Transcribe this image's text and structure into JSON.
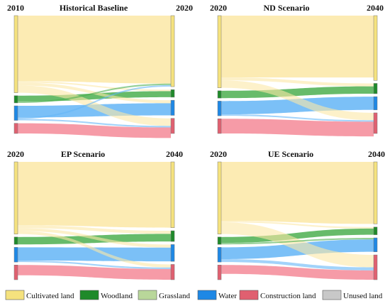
{
  "panels": [
    {
      "title": "Historical Baseline",
      "start_year": "2010",
      "end_year": "2020",
      "left": [
        {
          "class": "cultivated",
          "v": 53
        },
        {
          "class": "gap",
          "v": 2
        },
        {
          "class": "woodland",
          "v": 5
        },
        {
          "class": "gap",
          "v": 2
        },
        {
          "class": "water",
          "v": 10
        },
        {
          "class": "gap",
          "v": 2
        },
        {
          "class": "construction",
          "v": 7
        }
      ],
      "right": [
        {
          "class": "cultivated",
          "v": 47
        },
        {
          "class": "gap",
          "v": 2
        },
        {
          "class": "woodland",
          "v": 5
        },
        {
          "class": "gap",
          "v": 2
        },
        {
          "class": "water",
          "v": 10
        },
        {
          "class": "gap",
          "v": 2
        },
        {
          "class": "construction",
          "v": 10
        }
      ],
      "flows": [
        {
          "from": "cultivated",
          "to": "cultivated",
          "v": 45
        },
        {
          "from": "cultivated",
          "to": "woodland",
          "v": 1
        },
        {
          "from": "cultivated",
          "to": "water",
          "v": 2
        },
        {
          "from": "cultivated",
          "to": "construction",
          "v": 5
        },
        {
          "from": "woodland",
          "to": "woodland",
          "v": 4
        },
        {
          "from": "woodland",
          "to": "cultivated",
          "v": 1
        },
        {
          "from": "water",
          "to": "water",
          "v": 8
        },
        {
          "from": "water",
          "to": "cultivated",
          "v": 1
        },
        {
          "from": "water",
          "to": "construction",
          "v": 1
        },
        {
          "from": "construction",
          "to": "construction",
          "v": 7
        }
      ]
    },
    {
      "title": "ND Scenario",
      "start_year": "2020",
      "end_year": "2040",
      "left": [
        {
          "class": "cultivated",
          "v": 49
        },
        {
          "class": "gap",
          "v": 2
        },
        {
          "class": "woodland",
          "v": 5
        },
        {
          "class": "gap",
          "v": 2
        },
        {
          "class": "water",
          "v": 10
        },
        {
          "class": "gap",
          "v": 2
        },
        {
          "class": "construction",
          "v": 10
        }
      ],
      "right": [
        {
          "class": "cultivated",
          "v": 44
        },
        {
          "class": "gap",
          "v": 2
        },
        {
          "class": "woodland",
          "v": 7
        },
        {
          "class": "gap",
          "v": 2
        },
        {
          "class": "water",
          "v": 9
        },
        {
          "class": "gap",
          "v": 2
        },
        {
          "class": "construction",
          "v": 14
        }
      ],
      "flows": [
        {
          "from": "cultivated",
          "to": "cultivated",
          "v": 42
        },
        {
          "from": "cultivated",
          "to": "woodland",
          "v": 2
        },
        {
          "from": "cultivated",
          "to": "construction",
          "v": 5
        },
        {
          "from": "woodland",
          "to": "woodland",
          "v": 5
        },
        {
          "from": "water",
          "to": "water",
          "v": 9
        },
        {
          "from": "water",
          "to": "construction",
          "v": 1
        },
        {
          "from": "construction",
          "to": "construction",
          "v": 10
        }
      ]
    },
    {
      "title": "EP Scenario",
      "start_year": "2020",
      "end_year": "2040",
      "left": [
        {
          "class": "cultivated",
          "v": 49
        },
        {
          "class": "gap",
          "v": 2
        },
        {
          "class": "woodland",
          "v": 5
        },
        {
          "class": "gap",
          "v": 2
        },
        {
          "class": "water",
          "v": 10
        },
        {
          "class": "gap",
          "v": 2
        },
        {
          "class": "construction",
          "v": 10
        }
      ],
      "right": [
        {
          "class": "cultivated",
          "v": 43
        },
        {
          "class": "gap",
          "v": 2
        },
        {
          "class": "woodland",
          "v": 7
        },
        {
          "class": "gap",
          "v": 2
        },
        {
          "class": "water",
          "v": 11
        },
        {
          "class": "gap",
          "v": 2
        },
        {
          "class": "construction",
          "v": 10
        }
      ],
      "flows": [
        {
          "from": "cultivated",
          "to": "cultivated",
          "v": 43
        },
        {
          "from": "cultivated",
          "to": "woodland",
          "v": 2
        },
        {
          "from": "cultivated",
          "to": "water",
          "v": 2
        },
        {
          "from": "cultivated",
          "to": "construction",
          "v": 2
        },
        {
          "from": "woodland",
          "to": "woodland",
          "v": 5
        },
        {
          "from": "water",
          "to": "water",
          "v": 9
        },
        {
          "from": "water",
          "to": "construction",
          "v": 1
        },
        {
          "from": "construction",
          "to": "construction",
          "v": 7
        }
      ]
    },
    {
      "title": "UE Scenario",
      "start_year": "2020",
      "end_year": "2040",
      "left": [
        {
          "class": "cultivated",
          "v": 49
        },
        {
          "class": "gap",
          "v": 2
        },
        {
          "class": "woodland",
          "v": 5
        },
        {
          "class": "gap",
          "v": 2
        },
        {
          "class": "water",
          "v": 10
        },
        {
          "class": "gap",
          "v": 2
        },
        {
          "class": "construction",
          "v": 10
        }
      ],
      "right": [
        {
          "class": "cultivated",
          "v": 40
        },
        {
          "class": "gap",
          "v": 2
        },
        {
          "class": "woodland",
          "v": 5
        },
        {
          "class": "gap",
          "v": 2
        },
        {
          "class": "water",
          "v": 9
        },
        {
          "class": "gap",
          "v": 2
        },
        {
          "class": "construction",
          "v": 16
        }
      ],
      "flows": [
        {
          "from": "cultivated",
          "to": "cultivated",
          "v": 40
        },
        {
          "from": "cultivated",
          "to": "woodland",
          "v": 1
        },
        {
          "from": "cultivated",
          "to": "construction",
          "v": 8
        },
        {
          "from": "woodland",
          "to": "woodland",
          "v": 4
        },
        {
          "from": "woodland",
          "to": "water",
          "v": 1
        },
        {
          "from": "water",
          "to": "water",
          "v": 8
        },
        {
          "from": "water",
          "to": "construction",
          "v": 2
        },
        {
          "from": "construction",
          "to": "construction",
          "v": 6
        }
      ]
    }
  ],
  "classes": {
    "cultivated": {
      "label": "Cultivated land",
      "color": "#f5e27e",
      "flow": "#fbe8a6"
    },
    "woodland": {
      "label": "Woodland",
      "color": "#1f8a2a",
      "flow": "#4caf50"
    },
    "grassland": {
      "label": "Grassland",
      "color": "#b9d79a",
      "flow": "#cfe5b6"
    },
    "water": {
      "label": "Water",
      "color": "#1e88e5",
      "flow": "#64b5f6"
    },
    "construction": {
      "label": "Construction land",
      "color": "#e06070",
      "flow": "#f48a98"
    },
    "unused": {
      "label": "Unused land",
      "color": "#c8c8c8",
      "flow": "#dddddd"
    }
  },
  "legend_order": [
    "cultivated",
    "woodland",
    "grassland",
    "water",
    "construction",
    "unused"
  ]
}
